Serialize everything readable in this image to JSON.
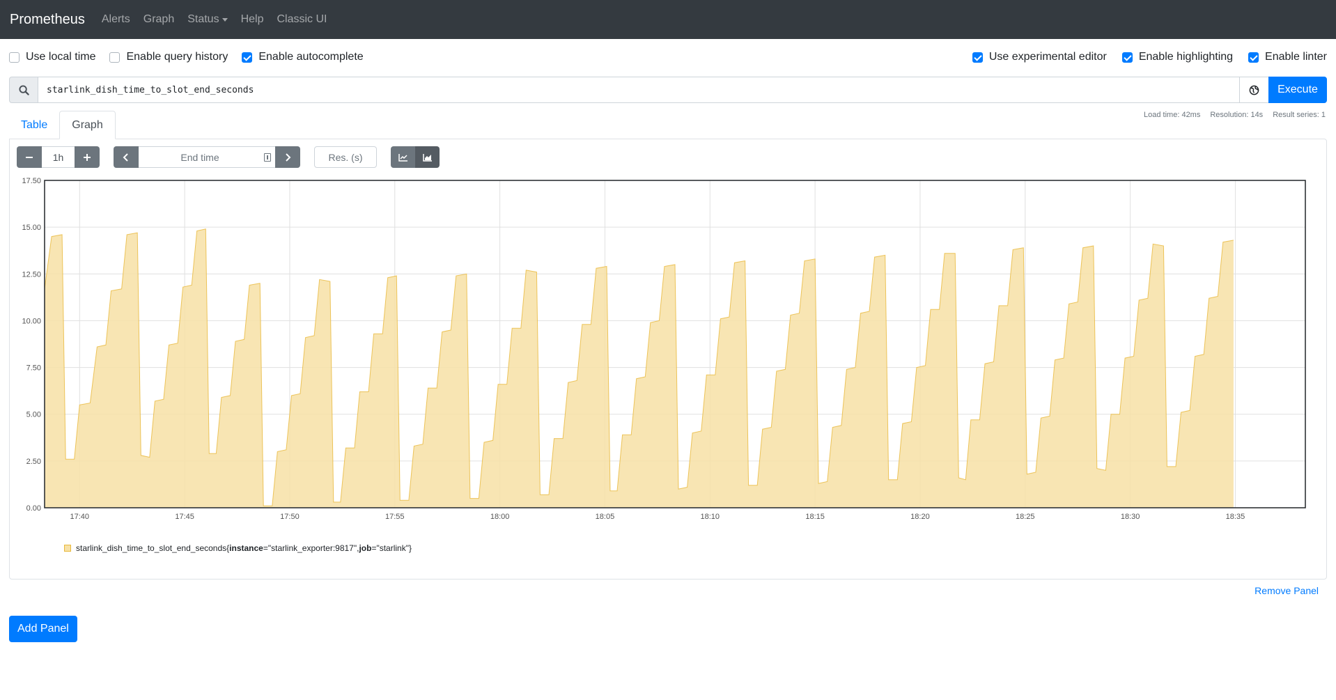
{
  "nav": {
    "brand": "Prometheus",
    "links": [
      "Alerts",
      "Graph",
      "Status",
      "Help",
      "Classic UI"
    ]
  },
  "options": {
    "left": [
      {
        "label": "Use local time",
        "checked": false
      },
      {
        "label": "Enable query history",
        "checked": false
      },
      {
        "label": "Enable autocomplete",
        "checked": true
      }
    ],
    "right": [
      {
        "label": "Use experimental editor",
        "checked": true
      },
      {
        "label": "Enable highlighting",
        "checked": true
      },
      {
        "label": "Enable linter",
        "checked": true
      }
    ]
  },
  "query": {
    "expression": "starlink_dish_time_to_slot_end_seconds",
    "execute_label": "Execute"
  },
  "tabs": {
    "table": "Table",
    "graph": "Graph",
    "active": "graph"
  },
  "stats": {
    "load_time": "Load time: 42ms",
    "resolution": "Resolution: 14s",
    "result_series": "Result series: 1"
  },
  "controls": {
    "range": "1h",
    "end_time_placeholder": "End time",
    "resolution_placeholder": "Res. (s)"
  },
  "legend": {
    "metric": "starlink_dish_time_to_slot_end_seconds",
    "open_brace": "{",
    "label1_key": "instance",
    "label1_value": "=\"starlink_exporter:9817\", ",
    "label2_key": "job",
    "label2_value": "=\"starlink\"",
    "close_brace": "}"
  },
  "remove_panel": "Remove Panel",
  "add_panel": "Add Panel",
  "colors": {
    "fill": "#f7e1a6",
    "stroke": "#e8b83a",
    "primary": "#007bff",
    "navbar": "#343a40"
  },
  "chart_data": {
    "type": "area",
    "x_unit": "time",
    "x_start": "17:38:20",
    "x_end": "18:38:20",
    "x_ticks": [
      "17:40",
      "17:45",
      "17:50",
      "17:55",
      "18:00",
      "18:05",
      "18:10",
      "18:15",
      "18:20",
      "18:25",
      "18:30",
      "18:35"
    ],
    "ylim": [
      0,
      17.5
    ],
    "y_ticks": [
      "0.00",
      "2.50",
      "5.00",
      "7.50",
      "10.00",
      "12.50",
      "15.00",
      "17.50"
    ],
    "grid": true,
    "stacked": true,
    "series": [
      {
        "name": "starlink_dish_time_to_slot_end_seconds{instance=\"starlink_exporter:9817\", job=\"starlink\"}",
        "points": [
          [
            "17:38:20",
            11.7
          ],
          [
            "17:38:40",
            14.5
          ],
          [
            "17:39:10",
            14.6
          ],
          [
            "17:39:20",
            2.6
          ],
          [
            "17:39:45",
            2.6
          ],
          [
            "17:40:00",
            5.5
          ],
          [
            "17:40:30",
            5.6
          ],
          [
            "17:40:50",
            8.6
          ],
          [
            "17:41:15",
            8.7
          ],
          [
            "17:41:30",
            11.6
          ],
          [
            "17:42:00",
            11.7
          ],
          [
            "17:42:15",
            14.6
          ],
          [
            "17:42:45",
            14.7
          ],
          [
            "17:42:55",
            2.8
          ],
          [
            "17:43:20",
            2.7
          ],
          [
            "17:43:35",
            5.7
          ],
          [
            "17:44:00",
            5.8
          ],
          [
            "17:44:15",
            8.7
          ],
          [
            "17:44:40",
            8.8
          ],
          [
            "17:44:55",
            11.8
          ],
          [
            "17:45:20",
            11.9
          ],
          [
            "17:45:35",
            14.8
          ],
          [
            "17:46:00",
            14.9
          ],
          [
            "17:46:10",
            2.9
          ],
          [
            "17:46:30",
            2.9
          ],
          [
            "17:46:45",
            5.9
          ],
          [
            "17:47:10",
            6.0
          ],
          [
            "17:47:25",
            8.9
          ],
          [
            "17:47:50",
            9.0
          ],
          [
            "17:48:05",
            11.9
          ],
          [
            "17:48:35",
            12.0
          ],
          [
            "17:48:45",
            0.1
          ],
          [
            "17:49:10",
            0.1
          ],
          [
            "17:49:25",
            3.0
          ],
          [
            "17:49:50",
            3.1
          ],
          [
            "17:50:05",
            6.0
          ],
          [
            "17:50:30",
            6.1
          ],
          [
            "17:50:45",
            9.1
          ],
          [
            "17:51:10",
            9.2
          ],
          [
            "17:51:25",
            12.2
          ],
          [
            "17:51:55",
            12.1
          ],
          [
            "17:52:05",
            0.3
          ],
          [
            "17:52:25",
            0.3
          ],
          [
            "17:52:40",
            3.2
          ],
          [
            "17:53:05",
            3.2
          ],
          [
            "17:53:20",
            6.2
          ],
          [
            "17:53:45",
            6.2
          ],
          [
            "17:54:00",
            9.3
          ],
          [
            "17:54:25",
            9.3
          ],
          [
            "17:54:40",
            12.3
          ],
          [
            "17:55:05",
            12.4
          ],
          [
            "17:55:15",
            0.4
          ],
          [
            "17:55:40",
            0.4
          ],
          [
            "17:55:55",
            3.3
          ],
          [
            "17:56:20",
            3.4
          ],
          [
            "17:56:35",
            6.4
          ],
          [
            "17:57:00",
            6.4
          ],
          [
            "17:57:15",
            9.4
          ],
          [
            "17:57:40",
            9.5
          ],
          [
            "17:57:55",
            12.4
          ],
          [
            "17:58:25",
            12.5
          ],
          [
            "17:58:35",
            0.5
          ],
          [
            "17:59:00",
            0.5
          ],
          [
            "17:59:15",
            3.5
          ],
          [
            "17:59:40",
            3.6
          ],
          [
            "17:59:55",
            6.6
          ],
          [
            "18:00:20",
            6.6
          ],
          [
            "18:00:35",
            9.6
          ],
          [
            "18:01:00",
            9.6
          ],
          [
            "18:01:15",
            12.7
          ],
          [
            "18:01:45",
            12.6
          ],
          [
            "18:01:55",
            0.7
          ],
          [
            "18:02:20",
            0.7
          ],
          [
            "18:02:35",
            3.7
          ],
          [
            "18:03:00",
            3.7
          ],
          [
            "18:03:15",
            6.7
          ],
          [
            "18:03:40",
            6.8
          ],
          [
            "18:03:55",
            9.8
          ],
          [
            "18:04:20",
            9.8
          ],
          [
            "18:04:35",
            12.8
          ],
          [
            "18:05:05",
            12.9
          ],
          [
            "18:05:15",
            0.9
          ],
          [
            "18:05:35",
            0.9
          ],
          [
            "18:05:50",
            3.9
          ],
          [
            "18:06:15",
            3.9
          ],
          [
            "18:06:30",
            6.9
          ],
          [
            "18:06:55",
            7.0
          ],
          [
            "18:07:10",
            9.9
          ],
          [
            "18:07:35",
            10.0
          ],
          [
            "18:07:50",
            12.9
          ],
          [
            "18:08:20",
            13.0
          ],
          [
            "18:08:30",
            1.0
          ],
          [
            "18:08:55",
            1.1
          ],
          [
            "18:09:10",
            4.0
          ],
          [
            "18:09:35",
            4.1
          ],
          [
            "18:09:50",
            7.1
          ],
          [
            "18:10:15",
            7.1
          ],
          [
            "18:10:30",
            10.1
          ],
          [
            "18:10:55",
            10.2
          ],
          [
            "18:11:10",
            13.1
          ],
          [
            "18:11:40",
            13.2
          ],
          [
            "18:11:50",
            1.2
          ],
          [
            "18:12:15",
            1.2
          ],
          [
            "18:12:30",
            4.2
          ],
          [
            "18:12:55",
            4.3
          ],
          [
            "18:13:10",
            7.3
          ],
          [
            "18:13:35",
            7.4
          ],
          [
            "18:13:50",
            10.3
          ],
          [
            "18:14:15",
            10.4
          ],
          [
            "18:14:30",
            13.2
          ],
          [
            "18:15:00",
            13.3
          ],
          [
            "18:15:10",
            1.3
          ],
          [
            "18:15:35",
            1.4
          ],
          [
            "18:15:50",
            4.3
          ],
          [
            "18:16:15",
            4.4
          ],
          [
            "18:16:30",
            7.4
          ],
          [
            "18:16:55",
            7.5
          ],
          [
            "18:17:10",
            10.4
          ],
          [
            "18:17:35",
            10.5
          ],
          [
            "18:17:50",
            13.4
          ],
          [
            "18:18:20",
            13.5
          ],
          [
            "18:18:30",
            1.5
          ],
          [
            "18:18:55",
            1.5
          ],
          [
            "18:19:10",
            4.5
          ],
          [
            "18:19:35",
            4.6
          ],
          [
            "18:19:50",
            7.5
          ],
          [
            "18:20:15",
            7.6
          ],
          [
            "18:20:30",
            10.6
          ],
          [
            "18:20:55",
            10.6
          ],
          [
            "18:21:10",
            13.6
          ],
          [
            "18:21:40",
            13.6
          ],
          [
            "18:21:50",
            1.6
          ],
          [
            "18:22:10",
            1.5
          ],
          [
            "18:22:25",
            4.7
          ],
          [
            "18:22:50",
            4.7
          ],
          [
            "18:23:05",
            7.7
          ],
          [
            "18:23:30",
            7.8
          ],
          [
            "18:23:45",
            10.8
          ],
          [
            "18:24:10",
            10.8
          ],
          [
            "18:24:25",
            13.8
          ],
          [
            "18:24:55",
            13.9
          ],
          [
            "18:25:05",
            1.8
          ],
          [
            "18:25:30",
            1.9
          ],
          [
            "18:25:45",
            4.8
          ],
          [
            "18:26:10",
            4.9
          ],
          [
            "18:26:25",
            7.9
          ],
          [
            "18:26:50",
            8.0
          ],
          [
            "18:27:05",
            10.9
          ],
          [
            "18:27:30",
            11.0
          ],
          [
            "18:27:45",
            13.9
          ],
          [
            "18:28:15",
            14.0
          ],
          [
            "18:28:25",
            2.1
          ],
          [
            "18:28:50",
            2.0
          ],
          [
            "18:29:05",
            5.0
          ],
          [
            "18:29:30",
            5.0
          ],
          [
            "18:29:45",
            8.0
          ],
          [
            "18:30:10",
            8.1
          ],
          [
            "18:30:25",
            11.1
          ],
          [
            "18:30:50",
            11.2
          ],
          [
            "18:31:05",
            14.1
          ],
          [
            "18:31:35",
            14.0
          ],
          [
            "18:31:45",
            2.2
          ],
          [
            "18:32:10",
            2.2
          ],
          [
            "18:32:25",
            5.1
          ],
          [
            "18:32:50",
            5.2
          ],
          [
            "18:33:05",
            8.1
          ],
          [
            "18:33:30",
            8.2
          ],
          [
            "18:33:45",
            11.2
          ],
          [
            "18:34:10",
            11.3
          ],
          [
            "18:34:25",
            14.2
          ],
          [
            "18:34:55",
            14.3
          ]
        ]
      }
    ]
  }
}
